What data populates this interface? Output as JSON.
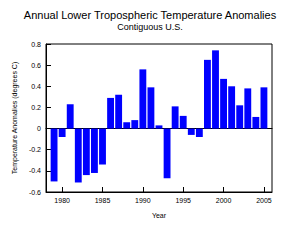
{
  "chart_data": {
    "type": "bar",
    "title": "Annual Lower Tropospheric Temperature Anomalies",
    "subtitle": "Contiguous U.S.",
    "xlabel": "Year",
    "ylabel": "Temperature Anomalies (degrees C)",
    "x": [
      1979,
      1980,
      1981,
      1982,
      1983,
      1984,
      1985,
      1986,
      1987,
      1988,
      1989,
      1990,
      1991,
      1992,
      1993,
      1994,
      1995,
      1996,
      1997,
      1998,
      1999,
      2000,
      2001,
      2002,
      2003,
      2004,
      2005
    ],
    "values": [
      -0.5,
      -0.08,
      0.23,
      -0.51,
      -0.44,
      -0.42,
      -0.34,
      0.29,
      0.32,
      0.06,
      0.08,
      0.56,
      0.39,
      0.03,
      -0.47,
      0.21,
      0.12,
      -0.06,
      -0.08,
      0.65,
      0.74,
      0.47,
      0.4,
      0.22,
      0.38,
      0.11,
      0.39
    ],
    "color": "#0000ff",
    "xlim": [
      1978,
      2006
    ],
    "xticks": [
      1980,
      1985,
      1990,
      1995,
      2000,
      2005
    ],
    "ylim": [
      -0.6,
      0.8
    ],
    "yticks": [
      -0.6,
      -0.4,
      -0.2,
      0,
      0.2,
      0.4,
      0.6,
      0.8
    ],
    "grid": false
  }
}
